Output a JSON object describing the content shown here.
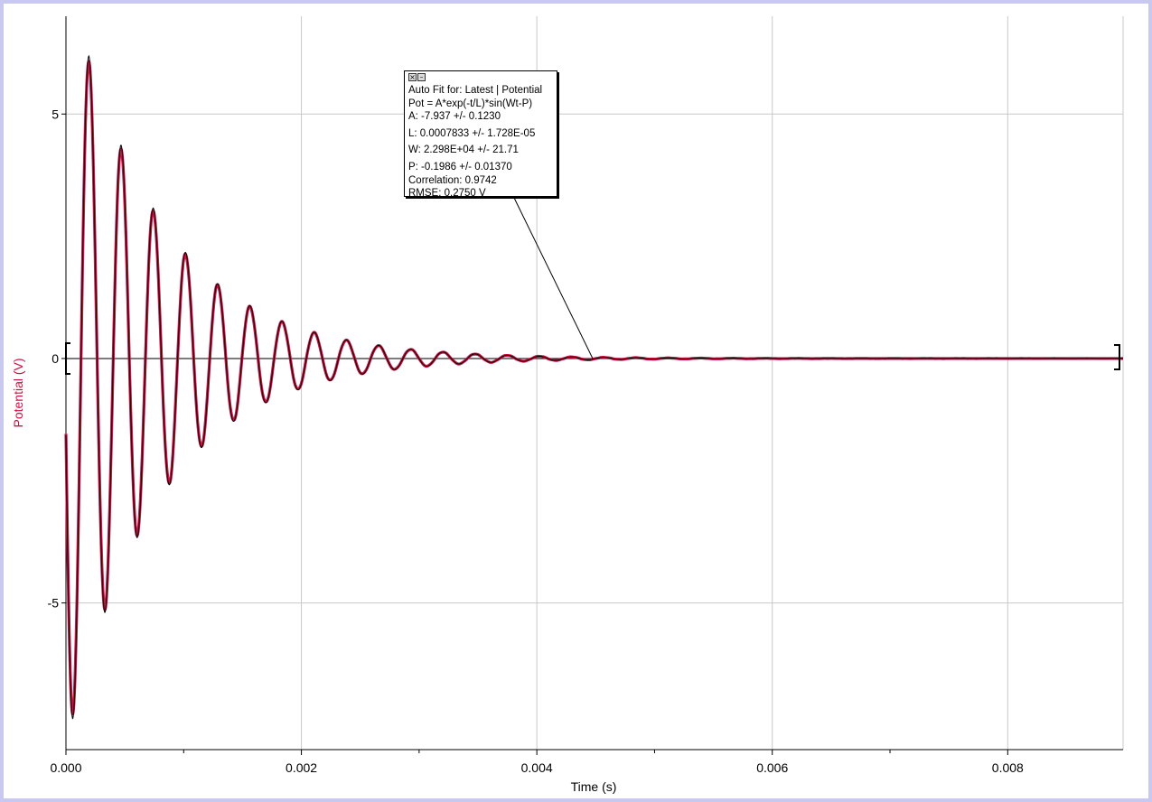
{
  "chart_data": {
    "type": "line",
    "xlabel": "Time (s)",
    "ylabel": "Potential (V)",
    "xlim": [
      0.0,
      0.00898
    ],
    "ylim": [
      -8.0,
      7.0
    ],
    "x_ticks": [
      "0.000",
      "0.002",
      "0.004",
      "0.006",
      "0.008"
    ],
    "y_ticks": [
      "5",
      "0",
      "-5"
    ],
    "grid": true,
    "series": [
      {
        "color": "#cc1144",
        "style": "data (thick)"
      },
      {
        "color": "#000000",
        "style": "fit (thin)"
      }
    ],
    "model": {
      "A": -7.937,
      "L": 0.0007833,
      "W": 22980,
      "P": -0.1986
    }
  },
  "fit_box": {
    "line1": "Auto Fit for: Latest | Potential",
    "line2": "Pot = A*exp(-t/L)*sin(Wt-P)",
    "line3": "A: -7.937 +/- 0.1230",
    "line4": "L: 0.0007833 +/- 1.728E-05",
    "line5": "W: 2.298E+04 +/- 21.71",
    "line6": "P: -0.1986 +/- 0.01370",
    "line7": "Correlation: 0.9742",
    "line8": "RMSE: 0.2750 V",
    "close_icon": "close-icon",
    "minimize_icon": "minimize-icon"
  },
  "colors": {
    "data_line": "#cc1144",
    "fit_line": "#000000",
    "ylabel": "#cc1144",
    "frame": "#c8c8f0"
  }
}
